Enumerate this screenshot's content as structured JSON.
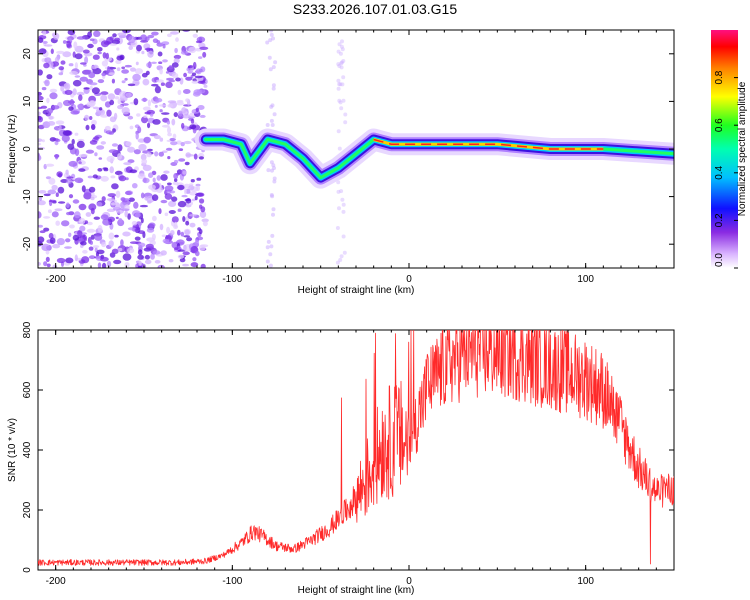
{
  "title": "S233.2026.107.01.03.G15",
  "chart_data": [
    {
      "type": "heatmap",
      "xlabel": "Height of straight line (km)",
      "ylabel": "Frequency (Hz)",
      "xlim": [
        -210,
        150
      ],
      "ylim": [
        -25,
        25
      ],
      "xticks": [
        -200,
        -100,
        0,
        100
      ],
      "yticks": [
        20,
        10,
        0,
        -10,
        -20
      ],
      "colorbar": {
        "label": "Normalized spectral amplitude",
        "range": [
          0,
          1
        ],
        "ticks": [
          0.0,
          0.2,
          0.4,
          0.6,
          0.8
        ]
      },
      "ridge": [
        {
          "x": -115,
          "y": 2
        },
        {
          "x": -105,
          "y": 2
        },
        {
          "x": -95,
          "y": 1
        },
        {
          "x": -90,
          "y": -3
        },
        {
          "x": -80,
          "y": 2
        },
        {
          "x": -70,
          "y": 1
        },
        {
          "x": -60,
          "y": -2
        },
        {
          "x": -50,
          "y": -6
        },
        {
          "x": -40,
          "y": -4
        },
        {
          "x": -30,
          "y": -1
        },
        {
          "x": -20,
          "y": 2
        },
        {
          "x": -10,
          "y": 1
        },
        {
          "x": 0,
          "y": 1
        },
        {
          "x": 20,
          "y": 1
        },
        {
          "x": 50,
          "y": 1
        },
        {
          "x": 80,
          "y": 0
        },
        {
          "x": 110,
          "y": 0
        },
        {
          "x": 150,
          "y": -1
        }
      ]
    },
    {
      "type": "line",
      "xlabel": "Height of straight line (km)",
      "ylabel": "SNR (10 * v/v)",
      "xlim": [
        -210,
        150
      ],
      "ylim": [
        0,
        800
      ],
      "xticks": [
        -200,
        -100,
        0,
        100
      ],
      "yticks": [
        0,
        200,
        400,
        600,
        800
      ],
      "series": [
        {
          "name": "SNR",
          "color": "#ff2a2a",
          "x": [
            -210,
            -190,
            -170,
            -150,
            -130,
            -115,
            -105,
            -95,
            -88,
            -82,
            -75,
            -65,
            -55,
            -45,
            -35,
            -28,
            -20,
            -15,
            -10,
            -5,
            0,
            10,
            20,
            30,
            40,
            50,
            60,
            70,
            80,
            90,
            100,
            110,
            120,
            130,
            140,
            150
          ],
          "y": [
            25,
            25,
            25,
            25,
            25,
            30,
            50,
            90,
            130,
            110,
            80,
            70,
            100,
            140,
            200,
            260,
            350,
            420,
            430,
            440,
            420,
            600,
            680,
            720,
            730,
            730,
            720,
            700,
            680,
            660,
            640,
            600,
            480,
            340,
            260,
            270
          ]
        }
      ]
    }
  ]
}
